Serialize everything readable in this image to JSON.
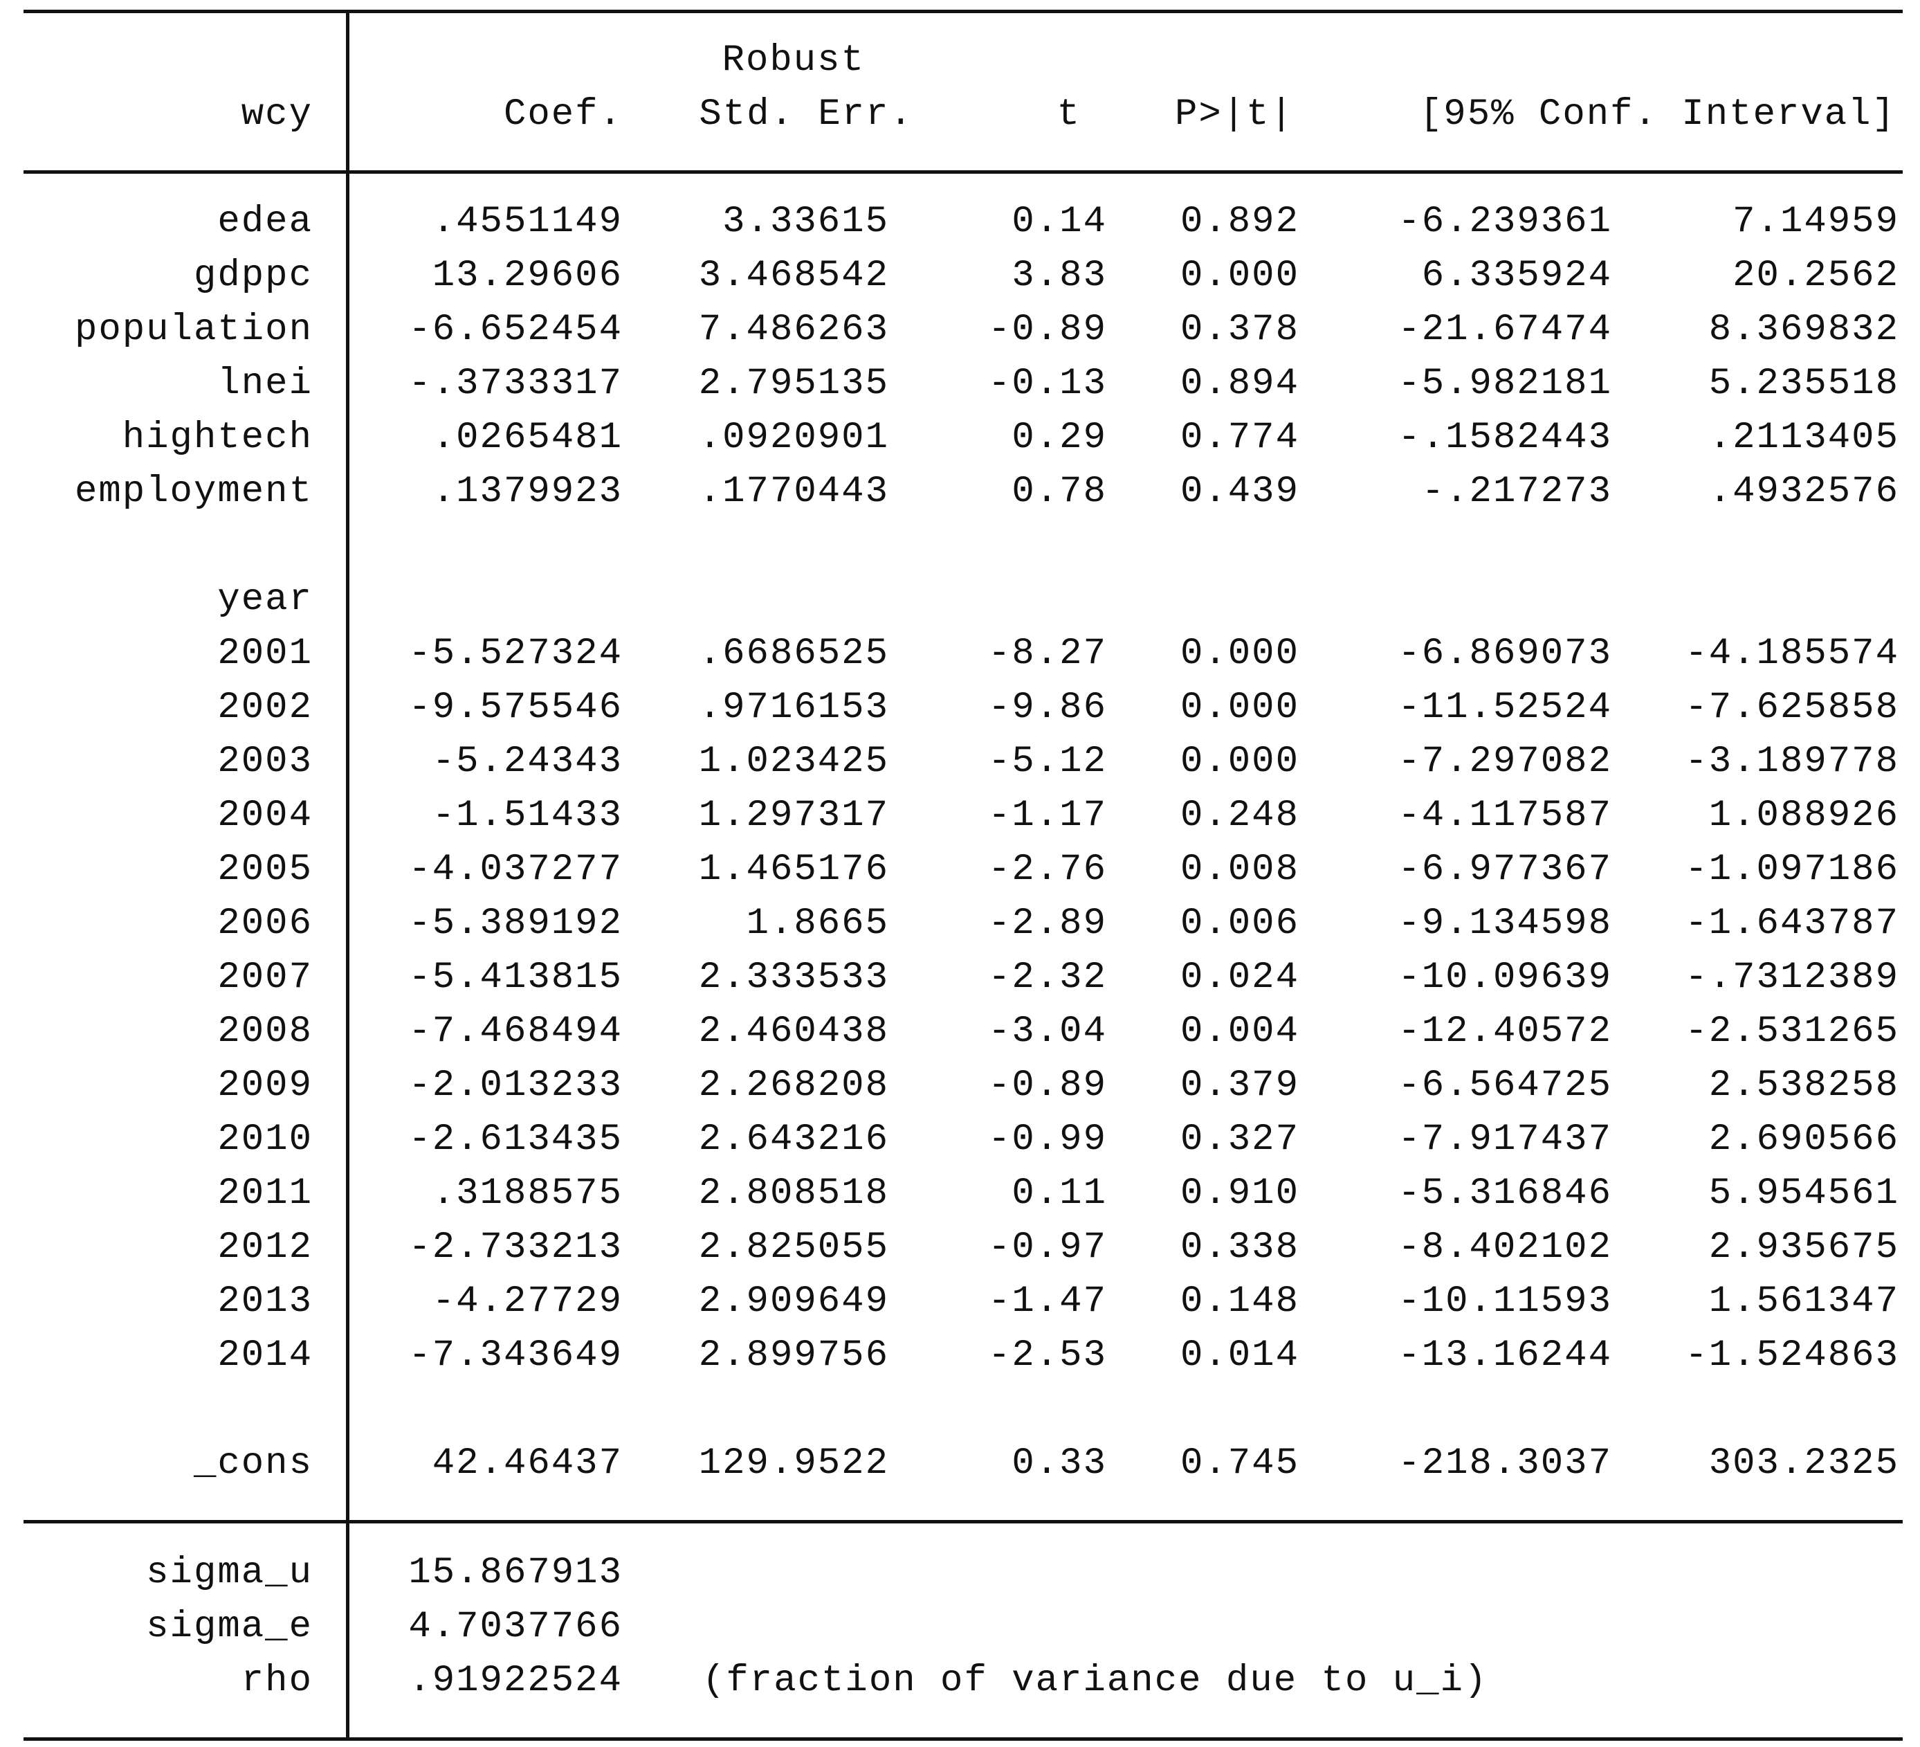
{
  "header": {
    "dep_var": "wcy",
    "robust": "Robust",
    "coef": "Coef.",
    "std_err": "Std. Err.",
    "t": "t",
    "p": "P>|t|",
    "ci": "[95% Conf. Interval]"
  },
  "block1": [
    {
      "name": "edea",
      "coef": ".4551149",
      "se": "3.33615",
      "t": "0.14",
      "p": "0.892",
      "lo": "-6.239361",
      "hi": "7.14959"
    },
    {
      "name": "gdppc",
      "coef": "13.29606",
      "se": "3.468542",
      "t": "3.83",
      "p": "0.000",
      "lo": "6.335924",
      "hi": "20.2562"
    },
    {
      "name": "population",
      "coef": "-6.652454",
      "se": "7.486263",
      "t": "-0.89",
      "p": "0.378",
      "lo": "-21.67474",
      "hi": "8.369832"
    },
    {
      "name": "lnei",
      "coef": "-.3733317",
      "se": "2.795135",
      "t": "-0.13",
      "p": "0.894",
      "lo": "-5.982181",
      "hi": "5.235518"
    },
    {
      "name": "hightech",
      "coef": ".0265481",
      "se": ".0920901",
      "t": "0.29",
      "p": "0.774",
      "lo": "-.1582443",
      "hi": ".2113405"
    },
    {
      "name": "employment",
      "coef": ".1379923",
      "se": ".1770443",
      "t": "0.78",
      "p": "0.439",
      "lo": "-.217273",
      "hi": ".4932576"
    }
  ],
  "year_label": "year",
  "years": [
    {
      "name": "2001",
      "coef": "-5.527324",
      "se": ".6686525",
      "t": "-8.27",
      "p": "0.000",
      "lo": "-6.869073",
      "hi": "-4.185574"
    },
    {
      "name": "2002",
      "coef": "-9.575546",
      "se": ".9716153",
      "t": "-9.86",
      "p": "0.000",
      "lo": "-11.52524",
      "hi": "-7.625858"
    },
    {
      "name": "2003",
      "coef": "-5.24343",
      "se": "1.023425",
      "t": "-5.12",
      "p": "0.000",
      "lo": "-7.297082",
      "hi": "-3.189778"
    },
    {
      "name": "2004",
      "coef": "-1.51433",
      "se": "1.297317",
      "t": "-1.17",
      "p": "0.248",
      "lo": "-4.117587",
      "hi": "1.088926"
    },
    {
      "name": "2005",
      "coef": "-4.037277",
      "se": "1.465176",
      "t": "-2.76",
      "p": "0.008",
      "lo": "-6.977367",
      "hi": "-1.097186"
    },
    {
      "name": "2006",
      "coef": "-5.389192",
      "se": "1.8665",
      "t": "-2.89",
      "p": "0.006",
      "lo": "-9.134598",
      "hi": "-1.643787"
    },
    {
      "name": "2007",
      "coef": "-5.413815",
      "se": "2.333533",
      "t": "-2.32",
      "p": "0.024",
      "lo": "-10.09639",
      "hi": "-.7312389"
    },
    {
      "name": "2008",
      "coef": "-7.468494",
      "se": "2.460438",
      "t": "-3.04",
      "p": "0.004",
      "lo": "-12.40572",
      "hi": "-2.531265"
    },
    {
      "name": "2009",
      "coef": "-2.013233",
      "se": "2.268208",
      "t": "-0.89",
      "p": "0.379",
      "lo": "-6.564725",
      "hi": "2.538258"
    },
    {
      "name": "2010",
      "coef": "-2.613435",
      "se": "2.643216",
      "t": "-0.99",
      "p": "0.327",
      "lo": "-7.917437",
      "hi": "2.690566"
    },
    {
      "name": "2011",
      "coef": ".3188575",
      "se": "2.808518",
      "t": "0.11",
      "p": "0.910",
      "lo": "-5.316846",
      "hi": "5.954561"
    },
    {
      "name": "2012",
      "coef": "-2.733213",
      "se": "2.825055",
      "t": "-0.97",
      "p": "0.338",
      "lo": "-8.402102",
      "hi": "2.935675"
    },
    {
      "name": "2013",
      "coef": "-4.27729",
      "se": "2.909649",
      "t": "-1.47",
      "p": "0.148",
      "lo": "-10.11593",
      "hi": "1.561347"
    },
    {
      "name": "2014",
      "coef": "-7.343649",
      "se": "2.899756",
      "t": "-2.53",
      "p": "0.014",
      "lo": "-13.16244",
      "hi": "-1.524863"
    }
  ],
  "cons": {
    "name": "_cons",
    "coef": "42.46437",
    "se": "129.9522",
    "t": "0.33",
    "p": "0.745",
    "lo": "-218.3037",
    "hi": "303.2325"
  },
  "footer": [
    {
      "name": "sigma_u",
      "value": "15.867913",
      "note": ""
    },
    {
      "name": "sigma_e",
      "value": "4.7037766",
      "note": ""
    },
    {
      "name": "rho",
      "value": ".91922524",
      "note": "(fraction of variance due to u_i)"
    }
  ]
}
